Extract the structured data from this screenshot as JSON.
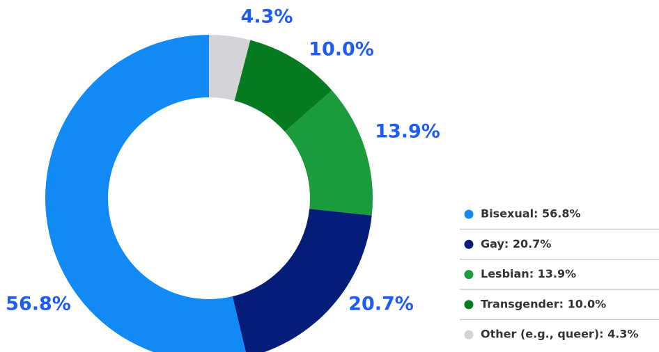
{
  "chart_data": {
    "type": "donut",
    "categories": [
      "Bisexual: 56.8%",
      "Gay: 20.7%",
      "Lesbian: 13.9%",
      "Transgender: 10.0%",
      "Other (e.g., queer): 4.3%"
    ],
    "values": [
      56.8,
      20.7,
      13.9,
      10.0,
      4.3
    ],
    "value_labels": [
      "56.8%",
      "20.7%",
      "13.9%",
      "10.0%",
      "4.3%"
    ],
    "colors": [
      "#118af5",
      "#031d78",
      "#1a9b3c",
      "#067a20",
      "#d3d3d8"
    ],
    "legend": "right"
  }
}
